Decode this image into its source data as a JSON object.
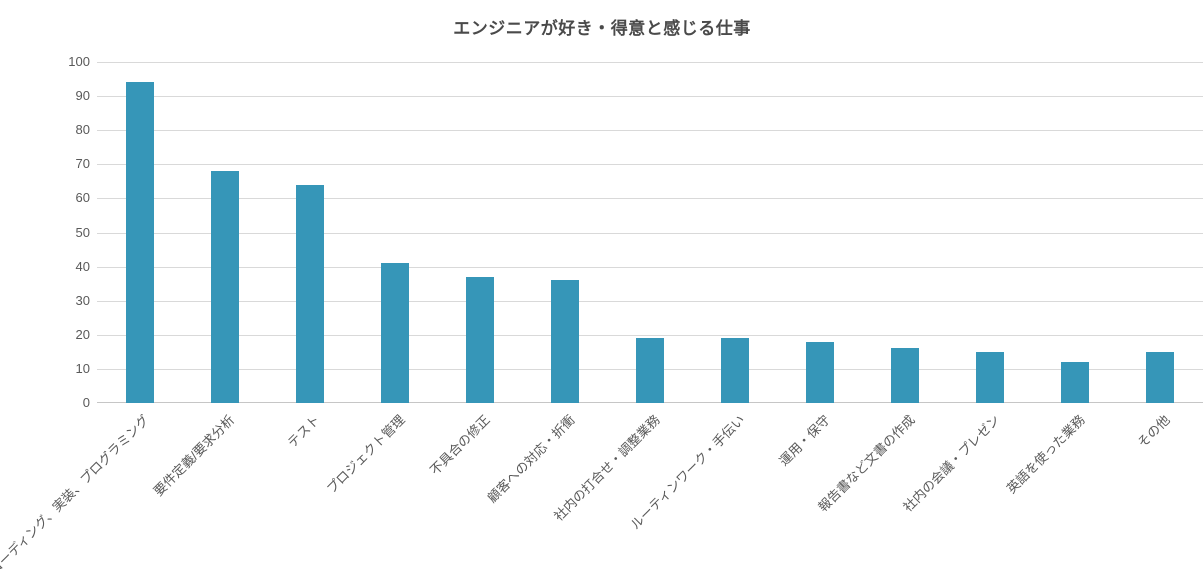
{
  "chart_data": {
    "type": "bar",
    "title": "エンジニアが好き・得意と感じる仕事",
    "categories": [
      "コーディング、実装、プログラミング",
      "要件定義/要求分析",
      "テスト",
      "プロジェクト管理",
      "不具合の修正",
      "顧客への対応・折衝",
      "社内の打合せ・調整業務",
      "ルーティンワーク・手伝い",
      "運用・保守",
      "報告書など文書の作成",
      "社内の会議・プレゼン",
      "英語を使った業務",
      "その他"
    ],
    "values": [
      94,
      68,
      64,
      41,
      37,
      36,
      19,
      19,
      18,
      16,
      15,
      12,
      15
    ],
    "xlabel": "",
    "ylabel": "",
    "ylim": [
      0,
      100
    ],
    "ytick_interval": 10,
    "grid": true,
    "legend": "none",
    "colors": {
      "bar": "#3696b8",
      "title_text": "#4a4a4a",
      "tick_text": "#595959",
      "gridline": "#d9d9d9",
      "axis_line": "#c6c6c6",
      "background": "#ffffff"
    }
  }
}
